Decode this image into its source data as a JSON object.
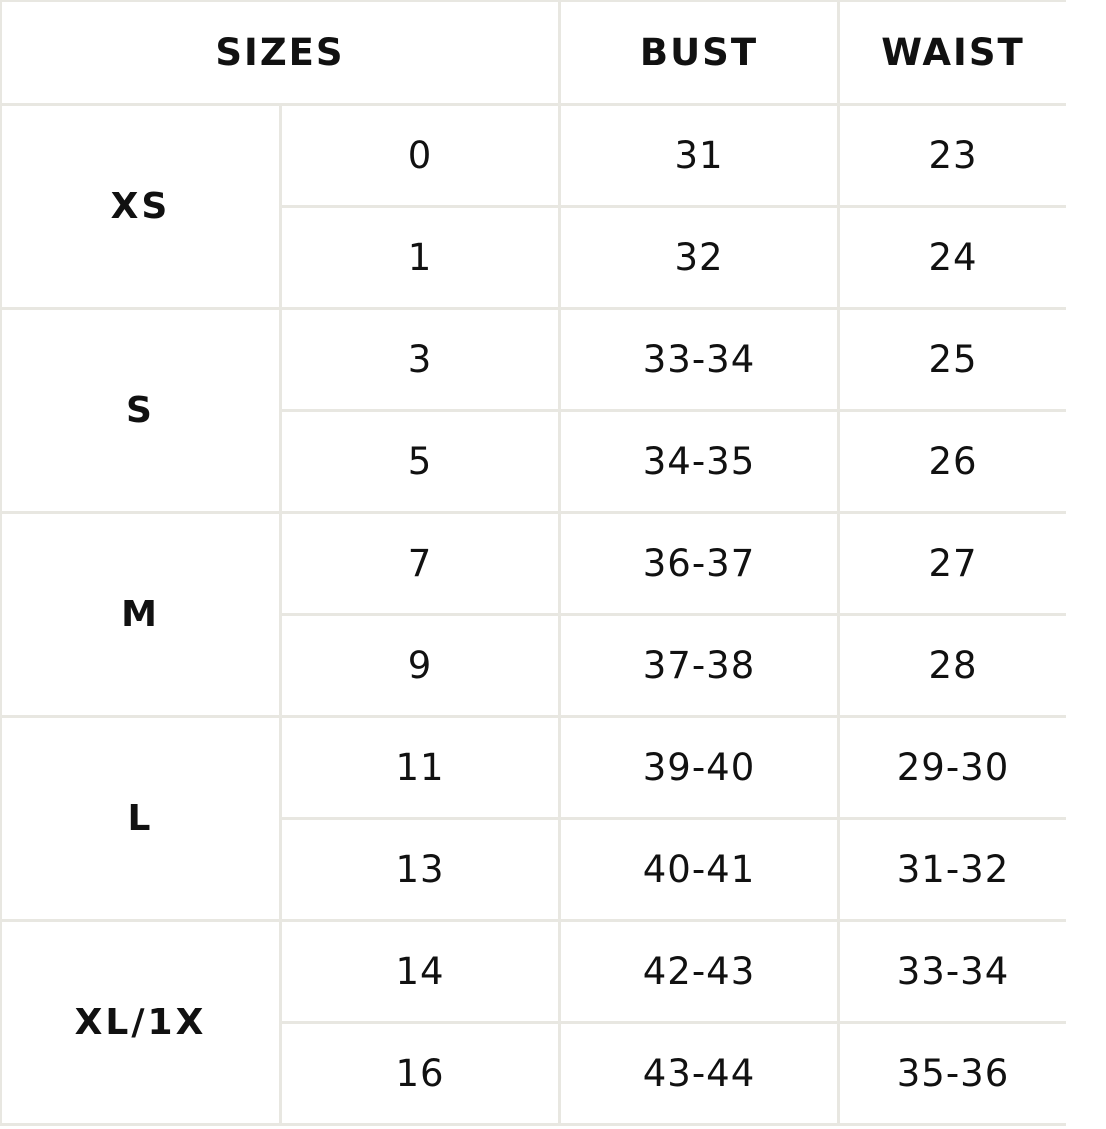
{
  "headers": {
    "sizes": "SIZES",
    "bust": "BUST",
    "waist": "WAIST"
  },
  "groups": [
    {
      "label": "XS",
      "rows": [
        {
          "size": "0",
          "bust": "31",
          "waist": "23"
        },
        {
          "size": "1",
          "bust": "32",
          "waist": "24"
        }
      ]
    },
    {
      "label": "S",
      "rows": [
        {
          "size": "3",
          "bust": "33-34",
          "waist": "25"
        },
        {
          "size": "5",
          "bust": "34-35",
          "waist": "26"
        }
      ]
    },
    {
      "label": "M",
      "rows": [
        {
          "size": "7",
          "bust": "36-37",
          "waist": "27"
        },
        {
          "size": "9",
          "bust": "37-38",
          "waist": "28"
        }
      ]
    },
    {
      "label": "L",
      "rows": [
        {
          "size": "11",
          "bust": "39-40",
          "waist": "29-30"
        },
        {
          "size": "13",
          "bust": "40-41",
          "waist": "31-32"
        }
      ]
    },
    {
      "label": "XL/1X",
      "rows": [
        {
          "size": "14",
          "bust": "42-43",
          "waist": "33-34"
        },
        {
          "size": "16",
          "bust": "43-44",
          "waist": "35-36"
        }
      ]
    }
  ]
}
